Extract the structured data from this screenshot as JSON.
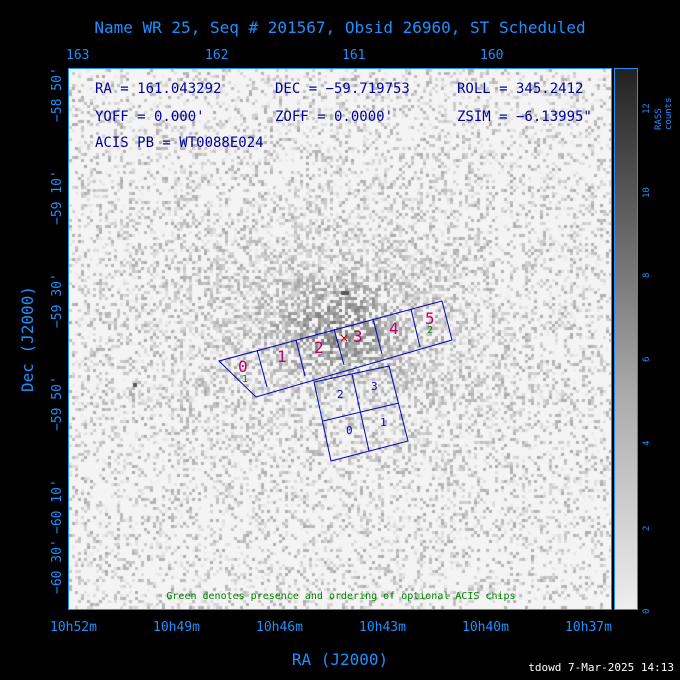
{
  "title": "Name WR 25, Seq # 201567, Obsid 26960, ST Scheduled",
  "info": {
    "ra": "RA = 161.043292",
    "dec": "DEC = −59.719753",
    "roll": "ROLL = 345.2412",
    "yoff": "YOFF =   0.000'",
    "zoff": "ZOFF =  0.0000'",
    "zsim": "ZSIM = −6.13995\"",
    "pb": "ACIS PB = WT0088E024"
  },
  "axes": {
    "xlabel": "RA (J2000)",
    "ylabel": "Dec (J2000)",
    "top_ticks": [
      "163",
      "162",
      "161",
      "160"
    ],
    "bottom_ticks": [
      "10h52m",
      "10h49m",
      "10h46m",
      "10h43m",
      "10h40m",
      "10h37m"
    ],
    "left_ticks": [
      "−58 50'",
      "−59 10'",
      "−59 30'",
      "−59 50'",
      "−60 10'",
      "−60 30'"
    ]
  },
  "colorbar": {
    "label": "RASS counts",
    "ticks": [
      "0",
      "2",
      "4",
      "6",
      "8",
      "10",
      "12"
    ]
  },
  "chips": {
    "acis_s": [
      "0",
      "1",
      "2",
      "3",
      "4",
      "5"
    ],
    "acis_i": [
      "2",
      "3",
      "0",
      "1"
    ],
    "optional": [
      "1",
      "2"
    ]
  },
  "note": "Green denotes presence and ordering of optional ACIS chips",
  "footer": "tdowd  7-Mar-2025 14:13"
}
